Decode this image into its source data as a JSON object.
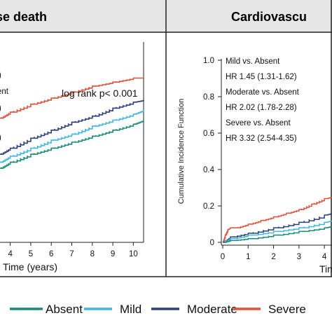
{
  "chart_data": [
    {
      "type": "line",
      "title": "se death",
      "xlabel": "Time (years)",
      "ylabel": "",
      "xlim": [
        3.5,
        10.5
      ],
      "ylim": [
        0,
        1.0
      ],
      "x_ticks": [
        4,
        5,
        6,
        7,
        8,
        9,
        10
      ],
      "x_tick_labels": [
        "4",
        "5",
        "6",
        "7",
        "8",
        "9",
        "10"
      ],
      "annotations": {
        "logrank": "log rank p< 0.001",
        "partial_lines": [
          ")",
          "ent",
          ")",
          ")"
        ]
      },
      "series": [
        {
          "name": "Severe",
          "x": [
            3.5,
            4,
            5,
            6,
            7,
            8,
            9,
            10,
            10.5
          ],
          "y": [
            0.62,
            0.65,
            0.69,
            0.72,
            0.75,
            0.78,
            0.8,
            0.82,
            0.82
          ]
        },
        {
          "name": "Moderate",
          "x": [
            3.5,
            4,
            5,
            6,
            7,
            8,
            9,
            10,
            10.5
          ],
          "y": [
            0.44,
            0.47,
            0.52,
            0.56,
            0.6,
            0.63,
            0.67,
            0.7,
            0.71
          ]
        },
        {
          "name": "Mild",
          "x": [
            3.5,
            4,
            5,
            6,
            7,
            8,
            9,
            10,
            10.5
          ],
          "y": [
            0.4,
            0.43,
            0.47,
            0.51,
            0.54,
            0.58,
            0.61,
            0.64,
            0.66
          ]
        },
        {
          "name": "Absent",
          "x": [
            3.5,
            4,
            5,
            6,
            7,
            8,
            9,
            10,
            10.5
          ],
          "y": [
            0.37,
            0.4,
            0.44,
            0.47,
            0.5,
            0.53,
            0.56,
            0.59,
            0.61
          ]
        }
      ]
    },
    {
      "type": "line",
      "title": "Cardiovascu",
      "xlabel": "Tim",
      "ylabel": "Cumulative Incidence Function",
      "xlim": [
        0,
        4.3
      ],
      "ylim": [
        0,
        1.0
      ],
      "x_ticks": [
        0,
        1,
        2,
        3,
        4
      ],
      "x_tick_labels": [
        "0",
        "1",
        "2",
        "3",
        "4"
      ],
      "y_ticks": [
        0,
        0.2,
        0.4,
        0.6,
        0.8,
        1.0
      ],
      "y_tick_labels": [
        "0",
        "0.2",
        "0.4",
        "0.6",
        "0.8",
        "1.0"
      ],
      "annotations": {
        "lines": [
          "Mild vs. Absent",
          "HR 1.45 (1.31-1.62)",
          "Moderate vs. Absent",
          "HR 2.02 (1.78-2.28)",
          "Severe vs. Absent",
          "HR 3.32 (2.54-4.35)"
        ]
      },
      "series": [
        {
          "name": "Severe",
          "x": [
            0,
            0.1,
            0.2,
            0.3,
            0.5,
            1,
            1.5,
            2,
            2.5,
            3,
            3.5,
            4,
            4.3
          ],
          "y": [
            0,
            0.04,
            0.07,
            0.08,
            0.08,
            0.1,
            0.12,
            0.14,
            0.16,
            0.18,
            0.21,
            0.24,
            0.25
          ]
        },
        {
          "name": "Moderate",
          "x": [
            0,
            0.3,
            1,
            2,
            3,
            4,
            4.3
          ],
          "y": [
            0,
            0.03,
            0.05,
            0.08,
            0.11,
            0.15,
            0.16
          ]
        },
        {
          "name": "Mild",
          "x": [
            0,
            0.3,
            1,
            2,
            3,
            4,
            4.3
          ],
          "y": [
            0,
            0.02,
            0.04,
            0.06,
            0.08,
            0.11,
            0.12
          ]
        },
        {
          "name": "Absent",
          "x": [
            0,
            0.3,
            1,
            2,
            3,
            4,
            4.3
          ],
          "y": [
            0,
            0.01,
            0.02,
            0.04,
            0.06,
            0.08,
            0.09
          ]
        }
      ]
    }
  ],
  "legend": {
    "items": [
      {
        "label": "Absent",
        "color": "#1a8a74"
      },
      {
        "label": "Mild",
        "color": "#41b6e0"
      },
      {
        "label": "Moderate",
        "color": "#2e3f7a"
      },
      {
        "label": "Severe",
        "color": "#e0503a"
      }
    ]
  },
  "colors": {
    "Absent": "#1a8a74",
    "Mild": "#41b6e0",
    "Moderate": "#2e3f7a",
    "Severe": "#e0503a"
  }
}
